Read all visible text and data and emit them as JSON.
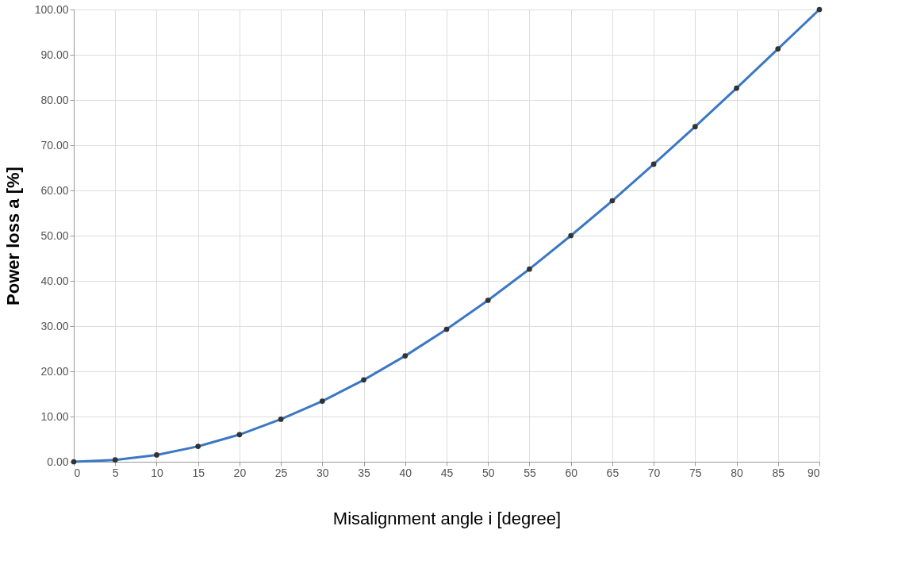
{
  "chart_data": {
    "type": "line",
    "xlabel": "Misalignment angle i [degree]",
    "ylabel": "Power loss a [%]",
    "categories": [
      "0",
      "5",
      "10",
      "15",
      "20",
      "25",
      "30",
      "35",
      "40",
      "45",
      "50",
      "55",
      "60",
      "65",
      "70",
      "75",
      "80",
      "85",
      "90"
    ],
    "series": [
      {
        "color": "#3b78c4",
        "values": [
          0,
          0.4,
          1.5,
          3.4,
          6,
          9.4,
          13.4,
          18.1,
          23.4,
          29.3,
          35.7,
          42.6,
          50,
          57.7,
          65.8,
          74.1,
          82.6,
          91.3,
          100
        ]
      }
    ],
    "ylim": [
      0,
      100
    ],
    "yticks": [
      {
        "value": 0,
        "label": "0.00"
      },
      {
        "value": 10,
        "label": "10.00"
      },
      {
        "value": 20,
        "label": "20.00"
      },
      {
        "value": 30,
        "label": "30.00"
      },
      {
        "value": 40,
        "label": "40.00"
      },
      {
        "value": 50,
        "label": "50.00"
      },
      {
        "value": 60,
        "label": "60.00"
      },
      {
        "value": 70,
        "label": "70.00"
      },
      {
        "value": 80,
        "label": "80.00"
      },
      {
        "value": 90,
        "label": "90.00"
      },
      {
        "value": 100,
        "label": "100.00"
      }
    ],
    "grid": true,
    "marker": "circle",
    "line_style": "solid"
  }
}
